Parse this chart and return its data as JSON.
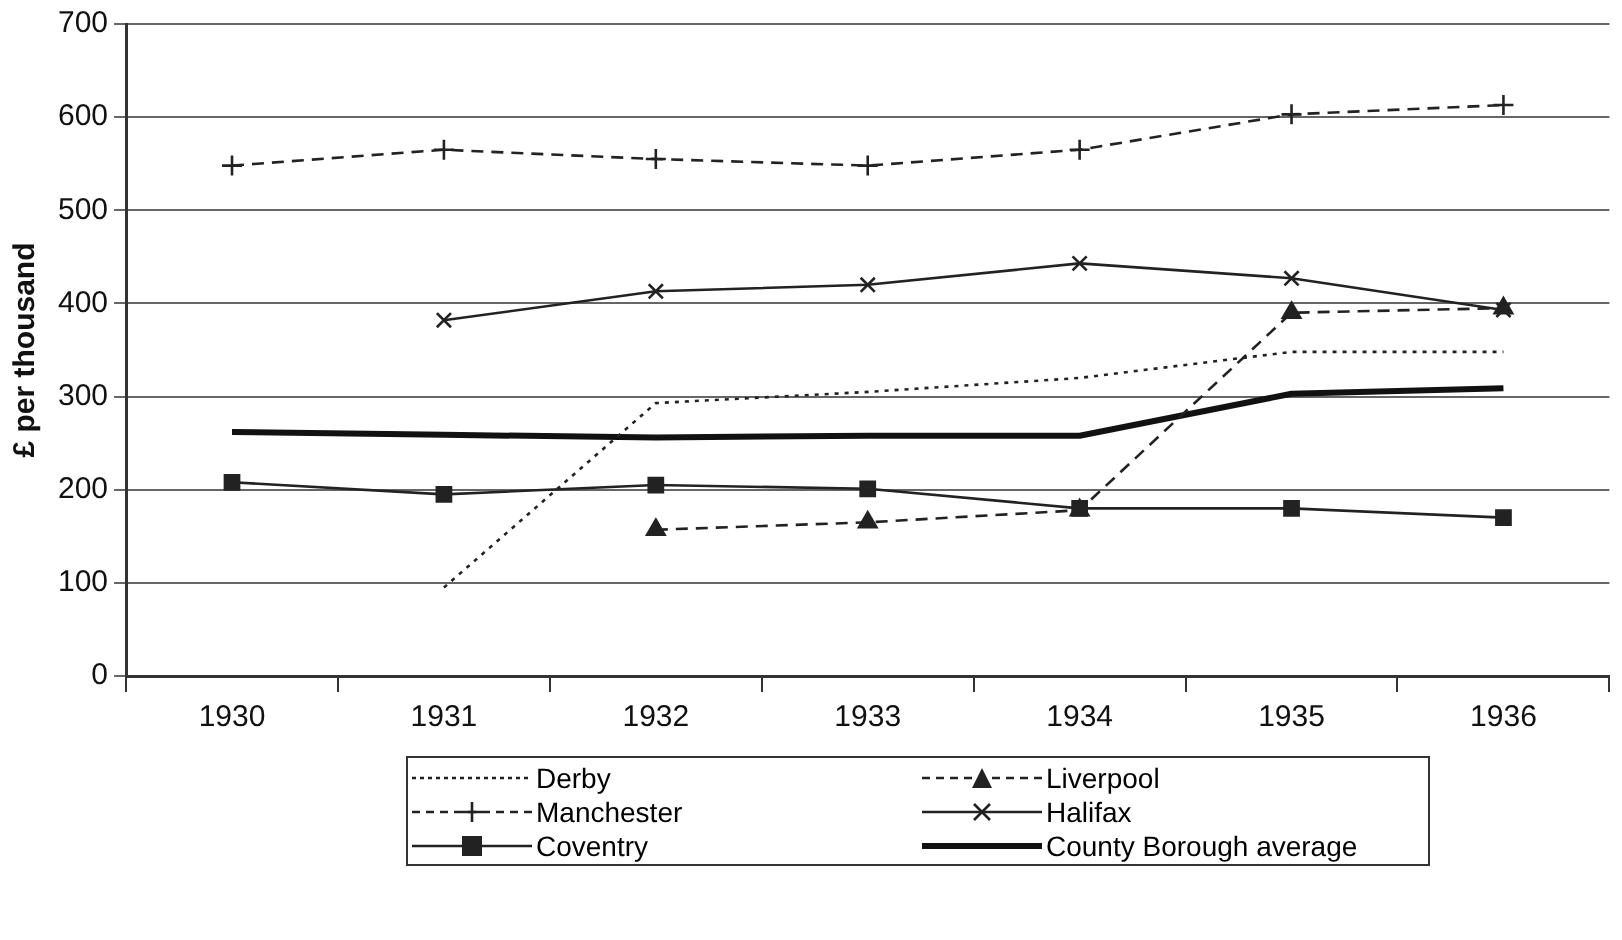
{
  "chart_data": {
    "type": "line",
    "ylabel": "£ per thousand",
    "categories": [
      "1930",
      "1931",
      "1932",
      "1933",
      "1934",
      "1935",
      "1936"
    ],
    "ylim": [
      0,
      700
    ],
    "yticks": [
      0,
      100,
      200,
      300,
      400,
      500,
      600,
      700
    ],
    "grid": "y",
    "legend": "bottom",
    "series": [
      {
        "name": "Derby",
        "color": "#222222",
        "line_style": "dotted",
        "marker": "none",
        "values": [
          null,
          95,
          293,
          305,
          320,
          348,
          348
        ]
      },
      {
        "name": "Liverpool",
        "color": "#222222",
        "line_style": "dashed",
        "marker": "triangle",
        "values": [
          null,
          null,
          157,
          165,
          178,
          390,
          395
        ]
      },
      {
        "name": "Manchester",
        "color": "#222222",
        "line_style": "dashed",
        "marker": "plus",
        "values": [
          548,
          565,
          555,
          548,
          565,
          603,
          613
        ]
      },
      {
        "name": "Halifax",
        "color": "#222222",
        "line_style": "solid",
        "marker": "cross",
        "values": [
          null,
          382,
          413,
          420,
          443,
          427,
          393
        ]
      },
      {
        "name": "Coventry",
        "color": "#222222",
        "line_style": "solid",
        "marker": "square",
        "values": [
          208,
          195,
          205,
          201,
          180,
          180,
          170
        ]
      },
      {
        "name": "County Borough average",
        "color": "#111111",
        "line_style": "solid",
        "marker": "none",
        "values": [
          262,
          259,
          256,
          258,
          258,
          303,
          309
        ]
      }
    ]
  }
}
